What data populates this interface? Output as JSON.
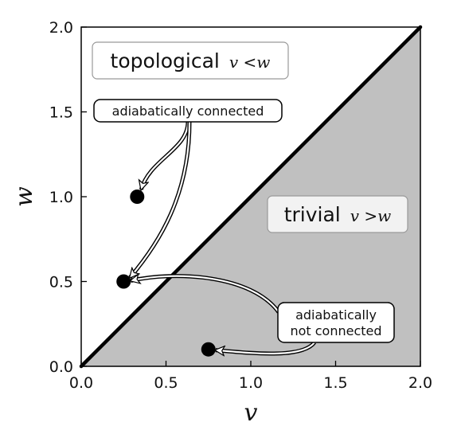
{
  "chart_data": {
    "type": "scatter",
    "xlabel": "v",
    "ylabel": "w",
    "xlim": [
      0,
      2
    ],
    "ylim": [
      0,
      2
    ],
    "xticks": [
      "0.0",
      "0.5",
      "1.0",
      "1.5",
      "2.0"
    ],
    "yticks": [
      "0.0",
      "0.5",
      "1.0",
      "1.5",
      "2.0"
    ],
    "grid": false,
    "diagonal_line": {
      "x": [
        0,
        2
      ],
      "y": [
        0,
        2
      ]
    },
    "points": [
      {
        "x": 0.33,
        "y": 1.0
      },
      {
        "x": 0.25,
        "y": 0.5
      },
      {
        "x": 0.75,
        "y": 0.1
      }
    ],
    "regions": [
      {
        "word": "topological",
        "math": "v <w",
        "fill": "#ffffff"
      },
      {
        "word": "trivial",
        "math": "v >w",
        "fill": "#c0c0c0"
      }
    ],
    "annotations": [
      {
        "lines": [
          "adiabatically connected"
        ],
        "arrows_to": [
          {
            "x": 0.33,
            "y": 1.0
          },
          {
            "x": 0.25,
            "y": 0.5
          }
        ]
      },
      {
        "lines": [
          "adiabatically",
          "not connected"
        ],
        "arrows_to": [
          {
            "x": 0.25,
            "y": 0.5
          },
          {
            "x": 0.75,
            "y": 0.1
          }
        ]
      }
    ]
  }
}
